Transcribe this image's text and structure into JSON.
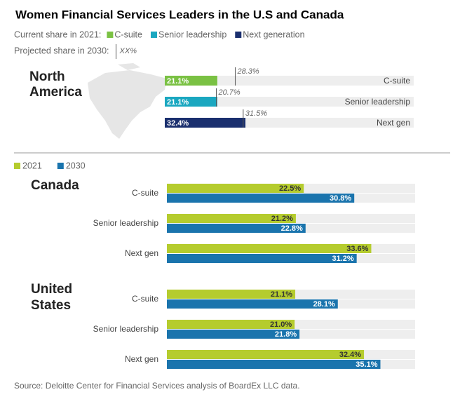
{
  "title": "Women Financial Services Leaders in the U.S and Canada",
  "source": "Source: Deloitte Center for Financial Services analysis of BoardEx LLC data.",
  "chart_data": [
    {
      "type": "projection_bar",
      "title": "North America",
      "legend": {
        "title": "Current share in 2021:",
        "items": [
          "C-suite",
          "Senior leadership",
          "Next generation"
        ]
      },
      "projection_legend": {
        "title": "Projected share in 2030:",
        "sample": "XX%"
      },
      "categories": [
        "C-suite",
        "Senior leadership",
        "Next gen"
      ],
      "colors": [
        "#7ac143",
        "#1aa7c0",
        "#1a2f6e"
      ],
      "values": [
        21.1,
        21.1,
        32.4
      ],
      "value_labels": [
        "21.1%",
        "21.1%",
        "32.4%"
      ],
      "projected": {
        "values": [
          28.3,
          20.7,
          31.5
        ],
        "value_labels": [
          "28.3%",
          "20.7%",
          "31.5%"
        ]
      },
      "xlim": [
        0,
        100
      ]
    },
    {
      "type": "grouped_bar",
      "series": [
        {
          "name": "2021",
          "color": "#b5cc2e"
        },
        {
          "name": "2030",
          "color": "#1a74ad"
        }
      ],
      "groups": [
        {
          "title": "Canada",
          "categories": [
            "C-suite",
            "Senior leadership",
            "Next gen"
          ],
          "values": [
            [
              22.5,
              21.2,
              33.6
            ],
            [
              30.8,
              22.8,
              31.2
            ]
          ],
          "value_labels": [
            [
              "22.5%",
              "21.2%",
              "33.6%"
            ],
            [
              "30.8%",
              "22.8%",
              "31.2%"
            ]
          ]
        },
        {
          "title": "United States",
          "categories": [
            "C-suite",
            "Senior leadership",
            "Next gen"
          ],
          "values": [
            [
              21.1,
              21.0,
              32.4
            ],
            [
              28.1,
              21.8,
              35.1
            ]
          ],
          "value_labels": [
            [
              "21.1%",
              "21.0%",
              "32.4%"
            ],
            [
              "28.1%",
              "21.8%",
              "35.1%"
            ]
          ]
        }
      ],
      "xlim": [
        0,
        40
      ]
    }
  ]
}
